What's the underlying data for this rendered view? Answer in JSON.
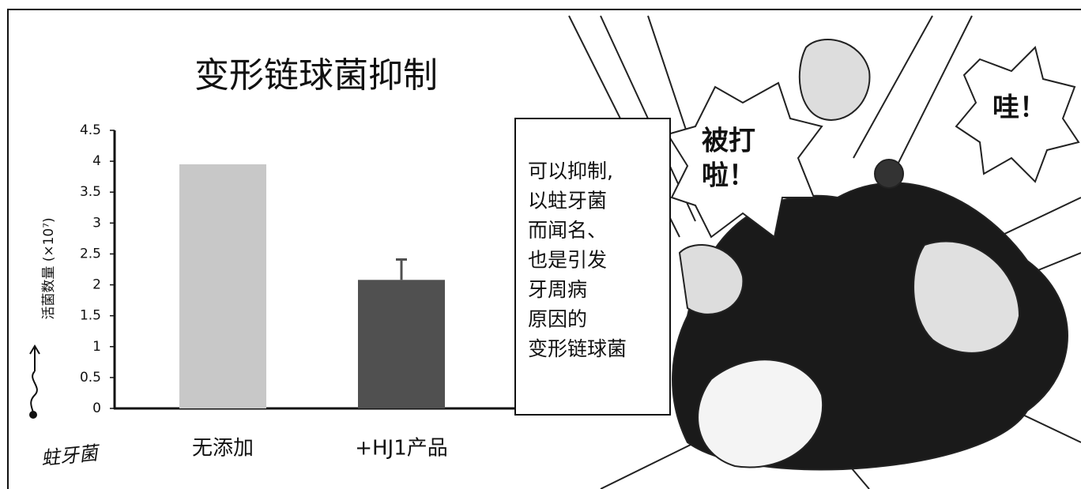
{
  "chart_data": {
    "type": "bar",
    "title": "变形链球菌抑制",
    "y_label": "活菌数量 (×10⁷)",
    "annotation": "蛀牙菌",
    "categories": [
      "无添加",
      "+HJ1产品"
    ],
    "values": [
      3.95,
      2.08
    ],
    "errors": [
      null,
      0.33
    ],
    "colors": [
      "#c8c8c8",
      "#505050"
    ],
    "ylim": [
      0,
      4.5
    ],
    "yticks": [
      0,
      0.5,
      1,
      1.5,
      2,
      2.5,
      3,
      3.5,
      4,
      4.5
    ],
    "grid": false
  },
  "panel": {
    "caption_lines": [
      "可以抑制,",
      "以蛀牙菌",
      "而闻名、",
      "也是引发",
      "牙周病",
      "原因的",
      "变形链球菌"
    ],
    "bubbles": [
      [
        "被打",
        "啦！"
      ],
      [
        "哇！"
      ]
    ]
  }
}
